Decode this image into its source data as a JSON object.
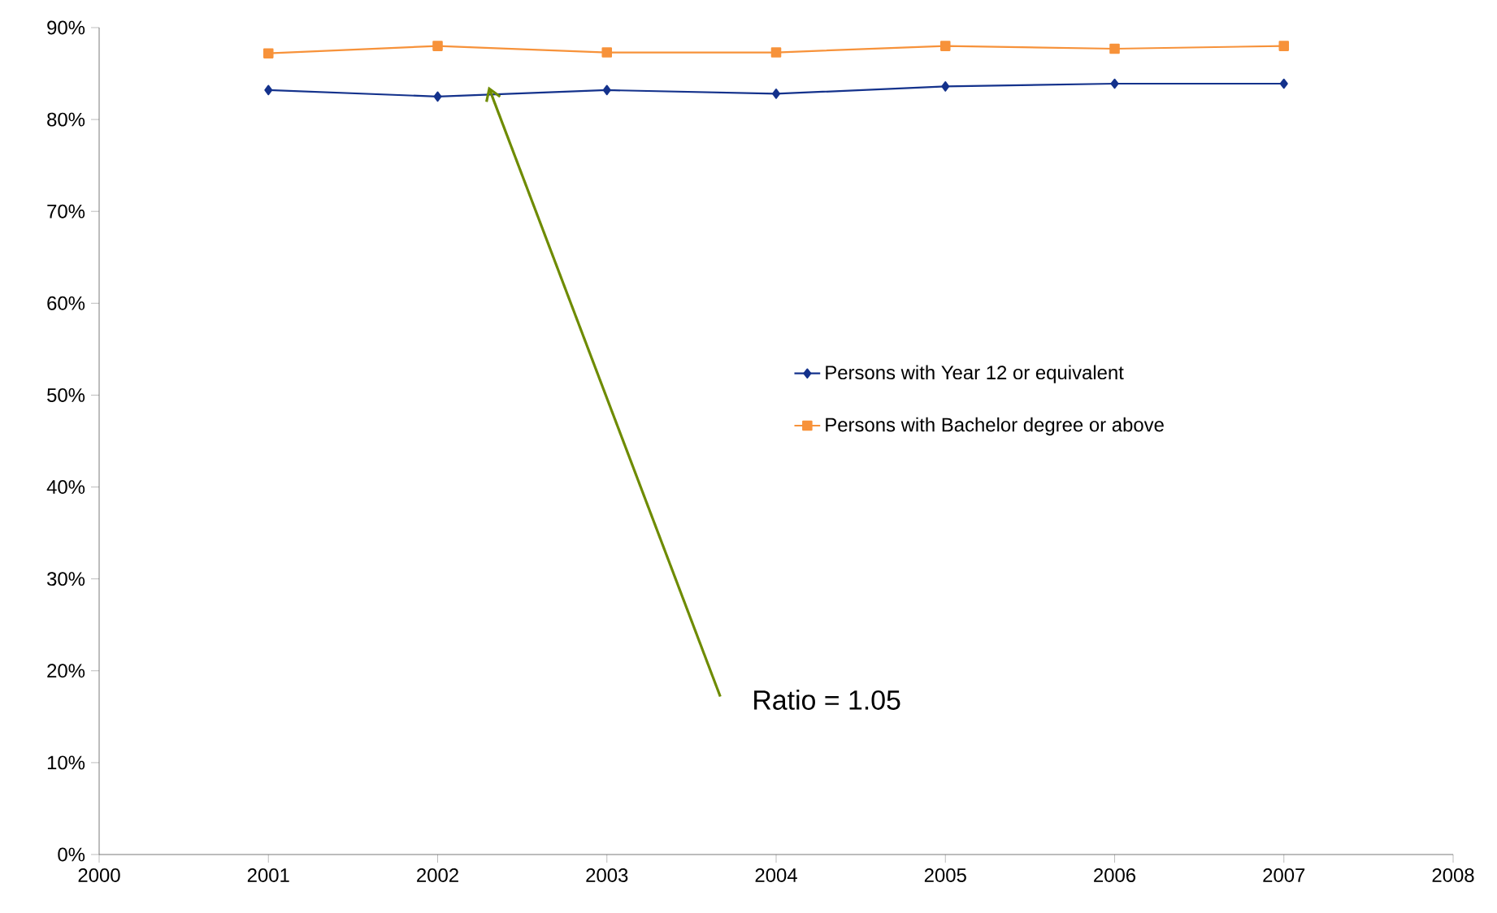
{
  "chart_data": {
    "type": "line",
    "x": [
      2001,
      2002,
      2003,
      2004,
      2005,
      2006,
      2007
    ],
    "series": [
      {
        "name": "Persons with Year 12 or equivalent",
        "color": "#14328c",
        "marker": "diamond",
        "values": [
          83.2,
          82.5,
          83.2,
          82.8,
          83.6,
          83.9,
          83.9
        ]
      },
      {
        "name": "Persons with Bachelor degree or above",
        "color": "#f7923a",
        "marker": "square",
        "values": [
          87.2,
          88.0,
          87.3,
          87.3,
          88.0,
          87.7,
          88.0
        ]
      }
    ],
    "xlim": [
      2000,
      2008
    ],
    "xticks": [
      2000,
      2001,
      2002,
      2003,
      2004,
      2005,
      2006,
      2007,
      2008
    ],
    "ylim": [
      0,
      90
    ],
    "yticks": [
      {
        "value": 0,
        "label": "0%"
      },
      {
        "value": 10,
        "label": "10%"
      },
      {
        "value": 20,
        "label": "20%"
      },
      {
        "value": 30,
        "label": "30%"
      },
      {
        "value": 40,
        "label": "40%"
      },
      {
        "value": 50,
        "label": "50%"
      },
      {
        "value": 60,
        "label": "60%"
      },
      {
        "value": 70,
        "label": "70%"
      },
      {
        "value": 80,
        "label": "80%"
      },
      {
        "value": 90,
        "label": "90%"
      }
    ],
    "grid": false,
    "legend": "right",
    "line_style": "solid",
    "annotations": [
      {
        "text": "Ratio = 1.05",
        "x": 2002.3,
        "y": 83.6
      }
    ]
  }
}
